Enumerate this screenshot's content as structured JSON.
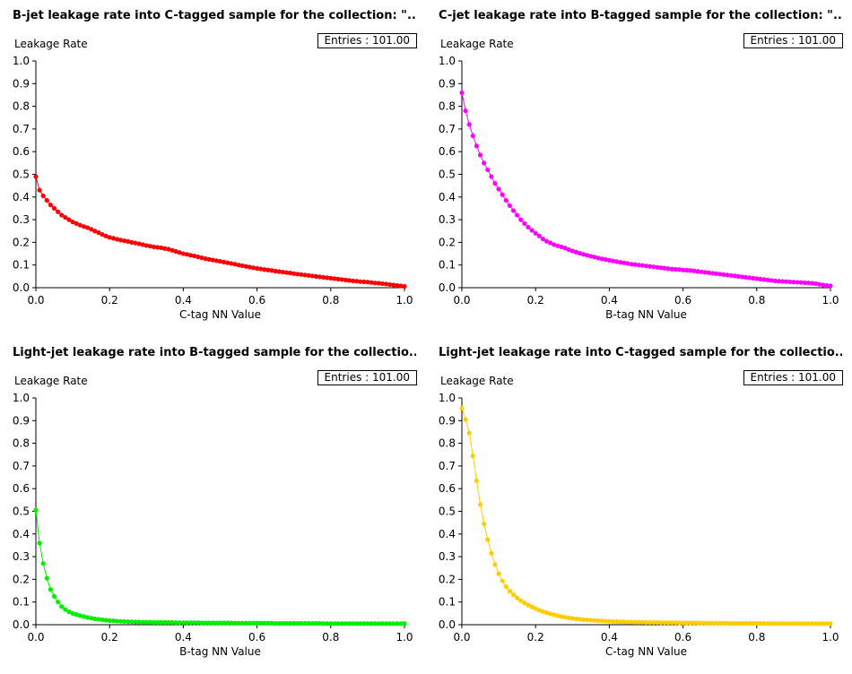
{
  "chart_data": [
    {
      "type": "line",
      "title": "B-jet leakage rate into C-tagged sample for the collection: \"...",
      "xlabel": "C-tag NN Value",
      "ylabel": "Leakage Rate",
      "entries_label": "Entries : 101.00",
      "xlim": [
        0,
        1
      ],
      "ylim": [
        0,
        1
      ],
      "xticks": [
        "0.0",
        "0.2",
        "0.4",
        "0.6",
        "0.8",
        "1.0"
      ],
      "yticks": [
        "0.0",
        "0.1",
        "0.2",
        "0.3",
        "0.4",
        "0.5",
        "0.6",
        "0.7",
        "0.8",
        "0.9",
        "1.0"
      ],
      "color": "#ff0000",
      "series": [
        {
          "x": [
            0,
            0.01,
            0.02,
            0.03,
            0.04,
            0.05,
            0.06,
            0.07,
            0.08,
            0.09,
            0.1,
            0.11,
            0.12,
            0.13,
            0.14,
            0.15,
            0.16,
            0.17,
            0.18,
            0.19,
            0.2,
            0.21,
            0.22,
            0.23,
            0.24,
            0.25,
            0.26,
            0.27,
            0.28,
            0.29,
            0.3,
            0.31,
            0.32,
            0.33,
            0.34,
            0.35,
            0.36,
            0.37,
            0.38,
            0.39,
            0.4,
            0.41,
            0.42,
            0.43,
            0.44,
            0.45,
            0.46,
            0.47,
            0.48,
            0.49,
            0.5,
            0.51,
            0.52,
            0.53,
            0.54,
            0.55,
            0.56,
            0.57,
            0.58,
            0.59,
            0.6,
            0.61,
            0.62,
            0.63,
            0.64,
            0.65,
            0.66,
            0.67,
            0.68,
            0.69,
            0.7,
            0.71,
            0.72,
            0.73,
            0.74,
            0.75,
            0.76,
            0.77,
            0.78,
            0.79,
            0.8,
            0.81,
            0.82,
            0.83,
            0.84,
            0.85,
            0.86,
            0.87,
            0.88,
            0.89,
            0.9,
            0.91,
            0.92,
            0.93,
            0.94,
            0.95,
            0.96,
            0.97,
            0.98,
            0.99,
            1.0
          ],
          "y": [
            0.49,
            0.43,
            0.405,
            0.385,
            0.365,
            0.35,
            0.335,
            0.32,
            0.31,
            0.3,
            0.29,
            0.283,
            0.276,
            0.27,
            0.265,
            0.258,
            0.25,
            0.243,
            0.235,
            0.228,
            0.222,
            0.218,
            0.214,
            0.21,
            0.207,
            0.204,
            0.2,
            0.197,
            0.194,
            0.19,
            0.186,
            0.183,
            0.18,
            0.178,
            0.176,
            0.173,
            0.17,
            0.165,
            0.16,
            0.155,
            0.15,
            0.147,
            0.143,
            0.14,
            0.136,
            0.132,
            0.128,
            0.125,
            0.122,
            0.119,
            0.116,
            0.113,
            0.11,
            0.107,
            0.104,
            0.1,
            0.097,
            0.094,
            0.091,
            0.088,
            0.085,
            0.083,
            0.08,
            0.078,
            0.076,
            0.073,
            0.071,
            0.069,
            0.067,
            0.065,
            0.062,
            0.06,
            0.058,
            0.056,
            0.054,
            0.052,
            0.05,
            0.048,
            0.046,
            0.044,
            0.042,
            0.04,
            0.038,
            0.036,
            0.034,
            0.032,
            0.03,
            0.029,
            0.027,
            0.026,
            0.025,
            0.023,
            0.021,
            0.02,
            0.018,
            0.016,
            0.014,
            0.012,
            0.01,
            0.008,
            0.006
          ]
        }
      ]
    },
    {
      "type": "line",
      "title": "C-jet leakage rate into B-tagged sample for the collection: \"...",
      "xlabel": "B-tag NN Value",
      "ylabel": "Leakage Rate",
      "entries_label": "Entries : 101.00",
      "xlim": [
        0,
        1
      ],
      "ylim": [
        0,
        1
      ],
      "xticks": [
        "0.0",
        "0.2",
        "0.4",
        "0.6",
        "0.8",
        "1.0"
      ],
      "yticks": [
        "0.0",
        "0.1",
        "0.2",
        "0.3",
        "0.4",
        "0.5",
        "0.6",
        "0.7",
        "0.8",
        "0.9",
        "1.0"
      ],
      "color": "#ff00ff",
      "series": [
        {
          "x": [
            0,
            0.01,
            0.02,
            0.03,
            0.04,
            0.05,
            0.06,
            0.07,
            0.08,
            0.09,
            0.1,
            0.11,
            0.12,
            0.13,
            0.14,
            0.15,
            0.16,
            0.17,
            0.18,
            0.19,
            0.2,
            0.21,
            0.22,
            0.23,
            0.24,
            0.25,
            0.26,
            0.27,
            0.28,
            0.29,
            0.3,
            0.31,
            0.32,
            0.33,
            0.34,
            0.35,
            0.36,
            0.37,
            0.38,
            0.39,
            0.4,
            0.41,
            0.42,
            0.43,
            0.44,
            0.45,
            0.46,
            0.47,
            0.48,
            0.49,
            0.5,
            0.51,
            0.52,
            0.53,
            0.54,
            0.55,
            0.56,
            0.57,
            0.58,
            0.59,
            0.6,
            0.61,
            0.62,
            0.63,
            0.64,
            0.65,
            0.66,
            0.67,
            0.68,
            0.69,
            0.7,
            0.71,
            0.72,
            0.73,
            0.74,
            0.75,
            0.76,
            0.77,
            0.78,
            0.79,
            0.8,
            0.81,
            0.82,
            0.83,
            0.84,
            0.85,
            0.86,
            0.87,
            0.88,
            0.89,
            0.9,
            0.91,
            0.92,
            0.93,
            0.94,
            0.95,
            0.96,
            0.97,
            0.98,
            0.99,
            1.0
          ],
          "y": [
            0.86,
            0.78,
            0.72,
            0.67,
            0.625,
            0.585,
            0.55,
            0.52,
            0.49,
            0.46,
            0.435,
            0.41,
            0.385,
            0.362,
            0.34,
            0.32,
            0.3,
            0.283,
            0.267,
            0.253,
            0.24,
            0.228,
            0.215,
            0.205,
            0.198,
            0.19,
            0.185,
            0.18,
            0.175,
            0.168,
            0.162,
            0.157,
            0.152,
            0.147,
            0.143,
            0.139,
            0.135,
            0.131,
            0.127,
            0.124,
            0.121,
            0.118,
            0.115,
            0.112,
            0.11,
            0.107,
            0.104,
            0.102,
            0.1,
            0.098,
            0.096,
            0.094,
            0.092,
            0.09,
            0.088,
            0.086,
            0.084,
            0.082,
            0.081,
            0.08,
            0.078,
            0.077,
            0.076,
            0.074,
            0.072,
            0.07,
            0.068,
            0.066,
            0.064,
            0.062,
            0.06,
            0.058,
            0.056,
            0.054,
            0.052,
            0.05,
            0.048,
            0.046,
            0.044,
            0.042,
            0.04,
            0.038,
            0.036,
            0.034,
            0.032,
            0.03,
            0.029,
            0.028,
            0.027,
            0.026,
            0.025,
            0.024,
            0.023,
            0.022,
            0.021,
            0.02,
            0.018,
            0.015,
            0.012,
            0.01,
            0.008
          ]
        }
      ]
    },
    {
      "type": "line",
      "title": "Light-jet leakage rate into B-tagged sample for the collectio...",
      "xlabel": "B-tag NN Value",
      "ylabel": "Leakage Rate",
      "entries_label": "Entries : 101.00",
      "xlim": [
        0,
        1
      ],
      "ylim": [
        0,
        1
      ],
      "xticks": [
        "0.0",
        "0.2",
        "0.4",
        "0.6",
        "0.8",
        "1.0"
      ],
      "yticks": [
        "0.0",
        "0.1",
        "0.2",
        "0.3",
        "0.4",
        "0.5",
        "0.6",
        "0.7",
        "0.8",
        "0.9",
        "1.0"
      ],
      "color": "#00ee00",
      "series": [
        {
          "x": [
            0,
            0.01,
            0.02,
            0.03,
            0.04,
            0.05,
            0.06,
            0.07,
            0.08,
            0.09,
            0.1,
            0.11,
            0.12,
            0.13,
            0.14,
            0.15,
            0.16,
            0.17,
            0.18,
            0.19,
            0.2,
            0.21,
            0.22,
            0.23,
            0.24,
            0.25,
            0.26,
            0.27,
            0.28,
            0.29,
            0.3,
            0.31,
            0.32,
            0.33,
            0.34,
            0.35,
            0.36,
            0.37,
            0.38,
            0.39,
            0.4,
            0.41,
            0.42,
            0.43,
            0.44,
            0.45,
            0.46,
            0.47,
            0.48,
            0.49,
            0.5,
            0.51,
            0.52,
            0.53,
            0.54,
            0.55,
            0.56,
            0.57,
            0.58,
            0.59,
            0.6,
            0.61,
            0.62,
            0.63,
            0.64,
            0.65,
            0.66,
            0.67,
            0.68,
            0.69,
            0.7,
            0.71,
            0.72,
            0.73,
            0.74,
            0.75,
            0.76,
            0.77,
            0.78,
            0.79,
            0.8,
            0.81,
            0.82,
            0.83,
            0.84,
            0.85,
            0.86,
            0.87,
            0.88,
            0.89,
            0.9,
            0.91,
            0.92,
            0.93,
            0.94,
            0.95,
            0.96,
            0.97,
            0.98,
            0.99,
            1.0
          ],
          "y": [
            0.505,
            0.36,
            0.27,
            0.205,
            0.155,
            0.125,
            0.1,
            0.08,
            0.067,
            0.057,
            0.05,
            0.045,
            0.04,
            0.036,
            0.032,
            0.029,
            0.026,
            0.024,
            0.022,
            0.02,
            0.018,
            0.017,
            0.016,
            0.015,
            0.014,
            0.013,
            0.013,
            0.012,
            0.012,
            0.011,
            0.011,
            0.011,
            0.01,
            0.01,
            0.01,
            0.01,
            0.01,
            0.01,
            0.009,
            0.009,
            0.009,
            0.009,
            0.009,
            0.009,
            0.009,
            0.008,
            0.008,
            0.008,
            0.008,
            0.008,
            0.008,
            0.008,
            0.008,
            0.008,
            0.007,
            0.007,
            0.007,
            0.007,
            0.007,
            0.007,
            0.007,
            0.007,
            0.007,
            0.007,
            0.007,
            0.006,
            0.006,
            0.006,
            0.006,
            0.006,
            0.006,
            0.006,
            0.006,
            0.006,
            0.006,
            0.006,
            0.006,
            0.006,
            0.005,
            0.005,
            0.005,
            0.005,
            0.005,
            0.005,
            0.005,
            0.005,
            0.005,
            0.005,
            0.005,
            0.005,
            0.005,
            0.005,
            0.005,
            0.005,
            0.005,
            0.005,
            0.005,
            0.005,
            0.005,
            0.005,
            0.005
          ]
        }
      ]
    },
    {
      "type": "line",
      "title": "Light-jet leakage rate into C-tagged sample for the collectio...",
      "xlabel": "C-tag NN Value",
      "ylabel": "Leakage Rate",
      "entries_label": "Entries : 101.00",
      "xlim": [
        0,
        1
      ],
      "ylim": [
        0,
        1
      ],
      "xticks": [
        "0.0",
        "0.2",
        "0.4",
        "0.6",
        "0.8",
        "1.0"
      ],
      "yticks": [
        "0.0",
        "0.1",
        "0.2",
        "0.3",
        "0.4",
        "0.5",
        "0.6",
        "0.7",
        "0.8",
        "0.9",
        "1.0"
      ],
      "color": "#ffcc00",
      "series": [
        {
          "x": [
            0,
            0.01,
            0.02,
            0.03,
            0.04,
            0.05,
            0.06,
            0.07,
            0.08,
            0.09,
            0.1,
            0.11,
            0.12,
            0.13,
            0.14,
            0.15,
            0.16,
            0.17,
            0.18,
            0.19,
            0.2,
            0.21,
            0.22,
            0.23,
            0.24,
            0.25,
            0.26,
            0.27,
            0.28,
            0.29,
            0.3,
            0.31,
            0.32,
            0.33,
            0.34,
            0.35,
            0.36,
            0.37,
            0.38,
            0.39,
            0.4,
            0.41,
            0.42,
            0.43,
            0.44,
            0.45,
            0.46,
            0.47,
            0.48,
            0.49,
            0.5,
            0.51,
            0.52,
            0.53,
            0.54,
            0.55,
            0.56,
            0.57,
            0.58,
            0.59,
            0.6,
            0.61,
            0.62,
            0.63,
            0.64,
            0.65,
            0.66,
            0.67,
            0.68,
            0.69,
            0.7,
            0.71,
            0.72,
            0.73,
            0.74,
            0.75,
            0.76,
            0.77,
            0.78,
            0.79,
            0.8,
            0.81,
            0.82,
            0.83,
            0.84,
            0.85,
            0.86,
            0.87,
            0.88,
            0.89,
            0.9,
            0.91,
            0.92,
            0.93,
            0.94,
            0.95,
            0.96,
            0.97,
            0.98,
            0.99,
            1.0
          ],
          "y": [
            0.955,
            0.905,
            0.845,
            0.745,
            0.635,
            0.53,
            0.445,
            0.375,
            0.315,
            0.265,
            0.225,
            0.193,
            0.168,
            0.148,
            0.132,
            0.118,
            0.106,
            0.096,
            0.087,
            0.079,
            0.071,
            0.064,
            0.058,
            0.053,
            0.048,
            0.044,
            0.04,
            0.036,
            0.033,
            0.03,
            0.028,
            0.026,
            0.024,
            0.022,
            0.021,
            0.02,
            0.019,
            0.018,
            0.017,
            0.016,
            0.015,
            0.014,
            0.014,
            0.013,
            0.013,
            0.012,
            0.012,
            0.011,
            0.011,
            0.011,
            0.01,
            0.01,
            0.01,
            0.01,
            0.009,
            0.009,
            0.009,
            0.009,
            0.009,
            0.008,
            0.008,
            0.008,
            0.008,
            0.008,
            0.008,
            0.007,
            0.007,
            0.007,
            0.007,
            0.007,
            0.007,
            0.007,
            0.007,
            0.006,
            0.006,
            0.006,
            0.006,
            0.006,
            0.006,
            0.006,
            0.006,
            0.006,
            0.006,
            0.005,
            0.005,
            0.005,
            0.005,
            0.005,
            0.005,
            0.005,
            0.005,
            0.005,
            0.005,
            0.005,
            0.005,
            0.005,
            0.005,
            0.005,
            0.005,
            0.005,
            0.005
          ]
        }
      ]
    }
  ]
}
